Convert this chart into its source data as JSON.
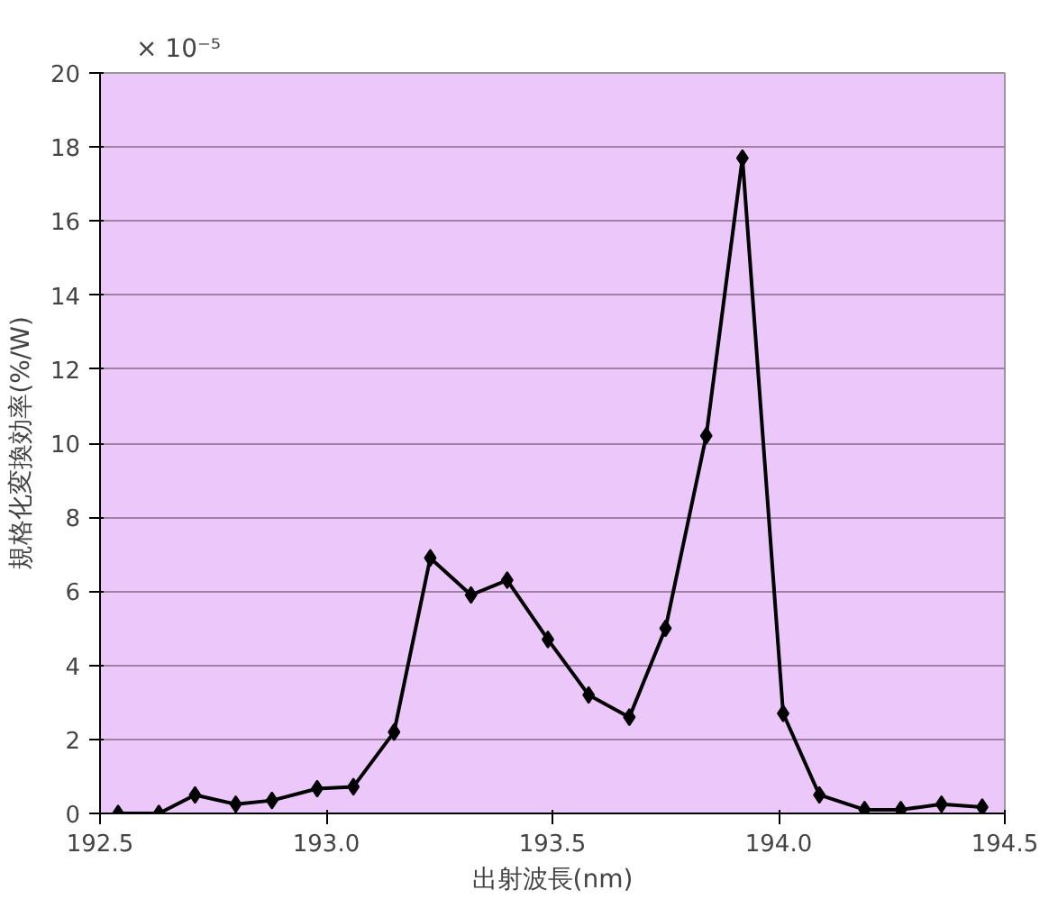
{
  "chart_data": {
    "type": "line",
    "x": [
      192.54,
      192.63,
      192.71,
      192.8,
      192.88,
      192.98,
      193.06,
      193.15,
      193.23,
      193.32,
      193.4,
      193.49,
      193.58,
      193.67,
      193.75,
      193.84,
      193.92,
      194.01,
      194.09,
      194.19,
      194.27,
      194.36,
      194.45
    ],
    "series": [
      {
        "color": "#000000",
        "values": [
          0,
          0,
          0.5,
          0.25,
          0.35,
          0.67,
          0.72,
          2.2,
          6.9,
          5.9,
          6.3,
          4.7,
          3.2,
          2.6,
          5.0,
          10.2,
          17.7,
          2.7,
          0.5,
          0.1,
          0.1,
          0.25,
          0.17
        ]
      }
    ],
    "xlabel": "出射波長(nm)",
    "ylabel": "規格化変換効率(%/W)",
    "annotations": [
      "× 10⁻⁵"
    ],
    "xlim": [
      192.5,
      194.5
    ],
    "xticks": [
      {
        "value": 192.5,
        "label": "192.5"
      },
      {
        "value": 193.0,
        "label": "193.0"
      },
      {
        "value": 193.5,
        "label": "193.5"
      },
      {
        "value": 194.0,
        "label": "194.0"
      },
      {
        "value": 194.5,
        "label": "194.5"
      }
    ],
    "ylim": [
      0,
      20
    ],
    "yticks": [
      0,
      2,
      4,
      6,
      8,
      10,
      12,
      14,
      16,
      18,
      20
    ],
    "grid": "y",
    "marker": "diamond",
    "line_style": "solid"
  }
}
